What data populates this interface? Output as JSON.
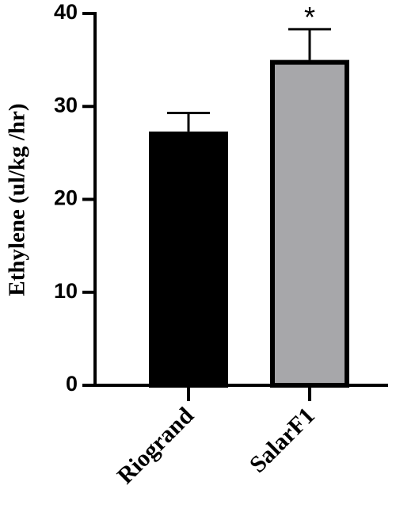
{
  "chart_data": {
    "type": "bar",
    "y_label": "Ethylene (ul/kg /hr)",
    "categories": [
      "Riogrand",
      "SalarF1"
    ],
    "values": [
      27.3,
      35.0
    ],
    "errors": [
      2.0,
      3.3
    ],
    "colors": [
      "#000000",
      "#a7a7aa"
    ],
    "annotations": [
      "",
      "*"
    ],
    "ylim": [
      0,
      40
    ],
    "yticks": [
      0,
      10,
      20,
      30,
      40
    ]
  }
}
